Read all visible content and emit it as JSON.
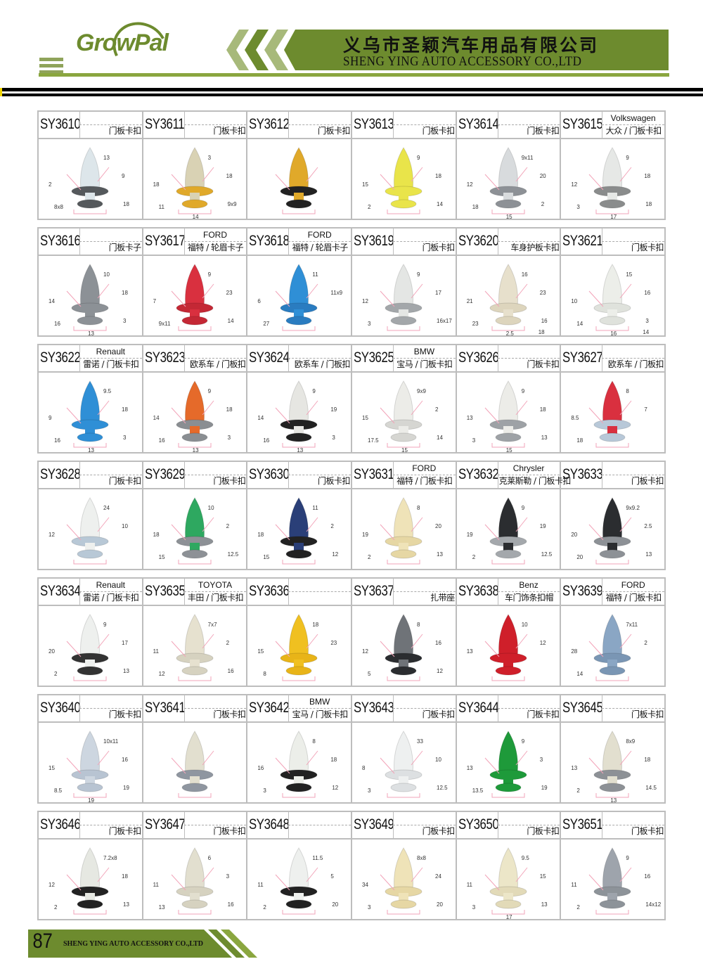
{
  "header": {
    "logo_text": "GrowPal",
    "company_cn": "义乌市圣颖汽车用品有限公司",
    "company_en": "SHENG YING AUTO ACCESSORY CO.,LTD",
    "brand_color": "#6d8b2e"
  },
  "items": [
    {
      "code": "SY3610",
      "brand": "",
      "desc": "门板卡扣",
      "colors": [
        "#dde6ea",
        "#55595c"
      ],
      "dims": [
        "2",
        "13",
        "9",
        "8x8",
        "18"
      ]
    },
    {
      "code": "SY3611",
      "brand": "",
      "desc": "门板卡扣",
      "colors": [
        "#d9d2b4",
        "#e0a92a"
      ],
      "dims": [
        "18",
        "3",
        "18",
        "11",
        "9x9",
        "14"
      ]
    },
    {
      "code": "SY3612",
      "brand": "",
      "desc": "门板卡扣",
      "colors": [
        "#e0a92a",
        "#222222"
      ],
      "dims": []
    },
    {
      "code": "SY3613",
      "brand": "",
      "desc": "门板卡扣",
      "colors": [
        "#e9e44a",
        "#e9e44a"
      ],
      "dims": [
        "15",
        "9",
        "18",
        "2",
        "14"
      ]
    },
    {
      "code": "SY3614",
      "brand": "",
      "desc": "门板卡扣",
      "colors": [
        "#d8dbdd",
        "#8d9196"
      ],
      "dims": [
        "12",
        "9x11",
        "20",
        "18",
        "2",
        "15"
      ]
    },
    {
      "code": "SY3615",
      "brand": "Volkswagen",
      "desc": "大众 / 门板卡扣",
      "colors": [
        "#e6e8e6",
        "#8a8c8c"
      ],
      "dims": [
        "12",
        "9",
        "18",
        "3",
        "18",
        "17"
      ]
    },
    {
      "code": "SY3616",
      "brand": "",
      "desc": "门板卡子",
      "colors": [
        "#8c9196",
        "#8c9196"
      ],
      "dims": [
        "14",
        "10",
        "18",
        "16",
        "3",
        "13"
      ]
    },
    {
      "code": "SY3617",
      "brand": "FORD",
      "desc": "福特 / 轮眉卡子",
      "colors": [
        "#d9303f",
        "#c42835"
      ],
      "dims": [
        "7",
        "9",
        "23",
        "9x11",
        "14"
      ]
    },
    {
      "code": "SY3618",
      "brand": "FORD",
      "desc": "福特 / 轮眉卡子",
      "colors": [
        "#2f8fd6",
        "#2a7cc0"
      ],
      "dims": [
        "6",
        "11",
        "11x9",
        "27"
      ]
    },
    {
      "code": "SY3619",
      "brand": "",
      "desc": "门板卡扣",
      "colors": [
        "#e4e6e4",
        "#a3a7aa"
      ],
      "dims": [
        "12",
        "9",
        "17",
        "3",
        "16x17"
      ]
    },
    {
      "code": "SY3620",
      "brand": "",
      "desc": "车身护板卡扣",
      "colors": [
        "#e7e0cc",
        "#ddd5bd"
      ],
      "dims": [
        "21",
        "16",
        "23",
        "23",
        "16",
        "2.5",
        "18"
      ]
    },
    {
      "code": "SY3621",
      "brand": "",
      "desc": "门板卡扣",
      "colors": [
        "#eceee9",
        "#dfe2dc"
      ],
      "dims": [
        "10",
        "15",
        "16",
        "14",
        "3",
        "16",
        "14"
      ]
    },
    {
      "code": "SY3622",
      "brand": "Renault",
      "desc": "雷诺 / 门板卡扣",
      "colors": [
        "#2f8fd6",
        "#2f8fd6"
      ],
      "dims": [
        "9",
        "9.5",
        "18",
        "16",
        "3",
        "13"
      ]
    },
    {
      "code": "SY3623",
      "brand": "",
      "desc": "欧系车 / 门板扣",
      "colors": [
        "#e56a2a",
        "#8a8e92"
      ],
      "dims": [
        "14",
        "9",
        "18",
        "16",
        "3",
        "13"
      ]
    },
    {
      "code": "SY3624",
      "brand": "",
      "desc": "欧系车 / 门板扣",
      "colors": [
        "#e6e6e2",
        "#222222"
      ],
      "dims": [
        "14",
        "9",
        "19",
        "16",
        "3",
        "13"
      ]
    },
    {
      "code": "SY3625",
      "brand": "BMW",
      "desc": "宝马 / 门板卡扣",
      "colors": [
        "#ecece8",
        "#d6d6d2"
      ],
      "dims": [
        "15",
        "9x9",
        "2",
        "17.5",
        "14",
        "15"
      ]
    },
    {
      "code": "SY3626",
      "brand": "",
      "desc": "门板卡扣",
      "colors": [
        "#ecece8",
        "#9ea2a6"
      ],
      "dims": [
        "13",
        "9",
        "18",
        "3",
        "13",
        "15"
      ]
    },
    {
      "code": "SY3627",
      "brand": "",
      "desc": "欧系车 / 门板扣",
      "colors": [
        "#d9303f",
        "#b8c8d8"
      ],
      "dims": [
        "8.5",
        "8",
        "7",
        "18"
      ]
    },
    {
      "code": "SY3628",
      "brand": "",
      "desc": "门板卡扣",
      "colors": [
        "#eef0ee",
        "#b8c8d6"
      ],
      "dims": [
        "12",
        "24",
        "10"
      ]
    },
    {
      "code": "SY3629",
      "brand": "",
      "desc": "门板卡扣",
      "colors": [
        "#2ea860",
        "#8d9196"
      ],
      "dims": [
        "18",
        "10",
        "2",
        "15",
        "12.5"
      ]
    },
    {
      "code": "SY3630",
      "brand": "",
      "desc": "门板卡扣",
      "colors": [
        "#2a3f78",
        "#222222"
      ],
      "dims": [
        "18",
        "11",
        "2",
        "15",
        "12"
      ]
    },
    {
      "code": "SY3631",
      "brand": "FORD",
      "desc": "福特 / 门板卡扣",
      "colors": [
        "#efe3b8",
        "#e6d7a4"
      ],
      "dims": [
        "19",
        "8",
        "20",
        "2",
        "13"
      ]
    },
    {
      "code": "SY3632",
      "brand": "Chrysler",
      "desc": "克莱斯勒 / 门板卡扣",
      "colors": [
        "#2b2d30",
        "#a4a8ac"
      ],
      "dims": [
        "19",
        "9",
        "19",
        "2",
        "12.5"
      ]
    },
    {
      "code": "SY3633",
      "brand": "",
      "desc": "门板卡扣",
      "colors": [
        "#2b2d30",
        "#8d9196"
      ],
      "dims": [
        "20",
        "9x9.2",
        "2.5",
        "20",
        "13"
      ]
    },
    {
      "code": "SY3634",
      "brand": "Renault",
      "desc": "雷诺 / 门板卡扣",
      "colors": [
        "#eef0ee",
        "#333333"
      ],
      "dims": [
        "20",
        "9",
        "17",
        "2",
        "13"
      ]
    },
    {
      "code": "SY3635",
      "brand": "TOYOTA",
      "desc": "丰田 / 门板卡扣",
      "colors": [
        "#e6e1cf",
        "#d6d2c0"
      ],
      "dims": [
        "11",
        "7x7",
        "2",
        "12",
        "16"
      ]
    },
    {
      "code": "SY3636",
      "brand": "",
      "desc": "",
      "colors": [
        "#f0c020",
        "#e8b418"
      ],
      "dims": [
        "15",
        "18",
        "23",
        "8"
      ]
    },
    {
      "code": "SY3637",
      "brand": "",
      "desc": "扎带座",
      "colors": [
        "#6f7378",
        "#2b2d30"
      ],
      "dims": [
        "12",
        "8",
        "16",
        "5",
        "12"
      ]
    },
    {
      "code": "SY3638",
      "brand": "Benz",
      "desc": "车门饰条扣帽",
      "colors": [
        "#cf1f2a",
        "#cf1f2a"
      ],
      "dims": [
        "13",
        "10",
        "12"
      ]
    },
    {
      "code": "SY3639",
      "brand": "FORD",
      "desc": "福特 / 门板卡扣",
      "colors": [
        "#8aa6c4",
        "#7a96b4"
      ],
      "dims": [
        "28",
        "7x11",
        "2",
        "14"
      ]
    },
    {
      "code": "SY3640",
      "brand": "",
      "desc": "门板卡扣",
      "colors": [
        "#cdd6e0",
        "#b8c4d2"
      ],
      "dims": [
        "15",
        "10x11",
        "16",
        "8.5",
        "19",
        "19"
      ]
    },
    {
      "code": "SY3641",
      "brand": "",
      "desc": "门板卡扣",
      "colors": [
        "#e2dfcf",
        "#8f96a0"
      ],
      "dims": []
    },
    {
      "code": "SY3642",
      "brand": "BMW",
      "desc": "宝马 / 门板卡扣",
      "colors": [
        "#eceee9",
        "#222222"
      ],
      "dims": [
        "16",
        "8",
        "18",
        "3",
        "12"
      ]
    },
    {
      "code": "SY3643",
      "brand": "",
      "desc": "门板卡扣",
      "colors": [
        "#eef0f0",
        "#dde0e2"
      ],
      "dims": [
        "8",
        "33",
        "10",
        "3",
        "12.5"
      ]
    },
    {
      "code": "SY3644",
      "brand": "",
      "desc": "门板卡扣",
      "colors": [
        "#1e9a3a",
        "#1e9a3a"
      ],
      "dims": [
        "13",
        "9",
        "3",
        "13.5",
        "19"
      ]
    },
    {
      "code": "SY3645",
      "brand": "",
      "desc": "门板卡扣",
      "colors": [
        "#e2dfcf",
        "#8d9196"
      ],
      "dims": [
        "13",
        "8x9",
        "18",
        "2",
        "14.5",
        "13"
      ]
    },
    {
      "code": "SY3646",
      "brand": "",
      "desc": "门板卡扣",
      "colors": [
        "#e6e8e2",
        "#222222"
      ],
      "dims": [
        "12",
        "7.2x8",
        "18",
        "2",
        "13"
      ]
    },
    {
      "code": "SY3647",
      "brand": "",
      "desc": "门板卡扣",
      "colors": [
        "#e2dfcf",
        "#d6d2c0"
      ],
      "dims": [
        "11",
        "6",
        "3",
        "13",
        "16"
      ]
    },
    {
      "code": "SY3648",
      "brand": "",
      "desc": "",
      "colors": [
        "#eef0ee",
        "#222222"
      ],
      "dims": [
        "11",
        "11.5",
        "5",
        "2",
        "20"
      ]
    },
    {
      "code": "SY3649",
      "brand": "",
      "desc": "门板卡扣",
      "colors": [
        "#efe3b8",
        "#e6d7a4"
      ],
      "dims": [
        "34",
        "8x8",
        "24",
        "3",
        "20"
      ]
    },
    {
      "code": "SY3650",
      "brand": "",
      "desc": "门板卡扣",
      "colors": [
        "#ece6c8",
        "#e2dab8"
      ],
      "dims": [
        "11",
        "9.5",
        "15",
        "3",
        "13",
        "17"
      ]
    },
    {
      "code": "SY3651",
      "brand": "",
      "desc": "门板卡扣",
      "colors": [
        "#9ea4ac",
        "#8d9399"
      ],
      "dims": [
        "11",
        "9",
        "16",
        "2",
        "14x12"
      ]
    }
  ],
  "footer": {
    "page_number": "87",
    "company_en": "SHENG YING AUTO ACCESSORY CO.,LTD"
  }
}
